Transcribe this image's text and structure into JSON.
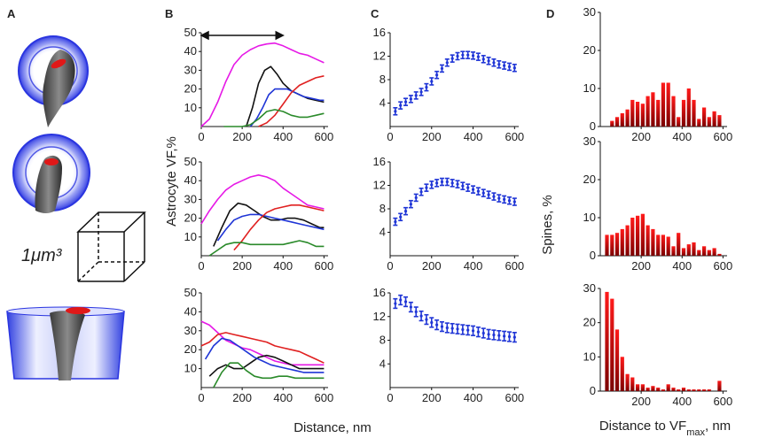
{
  "panel_labels": {
    "a": "A",
    "b": "B",
    "c": "C",
    "d": "D"
  },
  "scale_label": "1μm³",
  "colors": {
    "magenta": "#e619e6",
    "black": "#111111",
    "blue": "#1f35d6",
    "red": "#e02020",
    "green": "#2a8a2a",
    "error_blue": "#1f35d6",
    "hist_dark": "#7a0000",
    "hist_bright": "#ff1a1a"
  },
  "axis_labels": {
    "b_y": "Astrocyte VF,%",
    "b_x": "Distance, nm",
    "d_y": "Spines, %",
    "d_x_main": "Distance to VF",
    "d_x_sub": "max",
    "d_x_tail": ", nm"
  },
  "arrow_range_nm": [
    0,
    400
  ],
  "chart_data": [
    {
      "id": "B1",
      "type": "line",
      "xlim": [
        0,
        620
      ],
      "ylim": [
        0,
        50
      ],
      "xticks": [
        0,
        200,
        400,
        600
      ],
      "yticks": [
        10,
        20,
        30,
        40,
        50
      ],
      "series": [
        {
          "name": "magenta",
          "x": [
            0,
            40,
            80,
            120,
            160,
            200,
            240,
            280,
            320,
            360,
            400,
            440,
            480,
            520,
            560,
            600
          ],
          "y": [
            0,
            4,
            13,
            24,
            33,
            38,
            41,
            43,
            44,
            44.5,
            43,
            41,
            39,
            38,
            36,
            34
          ]
        },
        {
          "name": "black",
          "x": [
            220,
            250,
            280,
            310,
            340,
            370,
            400,
            440,
            480,
            520,
            560,
            600
          ],
          "y": [
            0,
            10,
            23,
            30,
            32,
            28,
            23,
            19,
            17,
            15,
            14,
            13
          ]
        },
        {
          "name": "blue",
          "x": [
            240,
            270,
            300,
            330,
            360,
            390,
            420,
            460,
            500,
            540,
            580,
            600
          ],
          "y": [
            0,
            4,
            10,
            17,
            20,
            20,
            20,
            18,
            16,
            15,
            14,
            14
          ]
        },
        {
          "name": "red",
          "x": [
            280,
            320,
            360,
            400,
            440,
            480,
            520,
            560,
            600
          ],
          "y": [
            0,
            2,
            6,
            12,
            18,
            22,
            24,
            26,
            27
          ]
        },
        {
          "name": "green",
          "x": [
            110,
            160,
            200,
            240,
            280,
            320,
            360,
            400,
            440,
            480,
            520,
            560,
            600
          ],
          "y": [
            0,
            0,
            0,
            1,
            4,
            8,
            9,
            8,
            6,
            5,
            5,
            6,
            7
          ]
        }
      ]
    },
    {
      "id": "B2",
      "type": "line",
      "xlim": [
        0,
        620
      ],
      "ylim": [
        0,
        50
      ],
      "xticks": [
        0,
        200,
        400,
        600
      ],
      "yticks": [
        10,
        20,
        30,
        40,
        50
      ],
      "series": [
        {
          "name": "magenta",
          "x": [
            0,
            40,
            80,
            120,
            160,
            200,
            240,
            280,
            320,
            360,
            400,
            440,
            480,
            520,
            560,
            600
          ],
          "y": [
            17,
            24,
            30,
            35,
            38,
            40,
            42,
            43,
            42,
            40,
            36,
            33,
            30,
            27,
            26,
            25
          ]
        },
        {
          "name": "black",
          "x": [
            60,
            100,
            140,
            180,
            220,
            260,
            300,
            340,
            380,
            420,
            460,
            500,
            540,
            580,
            600
          ],
          "y": [
            5,
            15,
            24,
            28,
            27,
            24,
            21,
            19,
            19,
            20,
            20,
            19,
            17,
            15,
            15
          ]
        },
        {
          "name": "blue",
          "x": [
            80,
            120,
            160,
            200,
            240,
            280,
            320,
            360,
            400,
            440,
            480,
            520,
            560,
            600
          ],
          "y": [
            8,
            14,
            19,
            21,
            22,
            22,
            21,
            20,
            19,
            18,
            17,
            16,
            15,
            14
          ]
        },
        {
          "name": "red",
          "x": [
            160,
            200,
            240,
            280,
            320,
            360,
            400,
            440,
            480,
            520,
            560,
            600
          ],
          "y": [
            3,
            8,
            14,
            19,
            23,
            25,
            26,
            27,
            27,
            26,
            25,
            24
          ]
        },
        {
          "name": "green",
          "x": [
            40,
            80,
            120,
            160,
            200,
            240,
            280,
            320,
            360,
            400,
            440,
            480,
            520,
            560,
            600
          ],
          "y": [
            0,
            3,
            6,
            7,
            7,
            6,
            6,
            6,
            6,
            6,
            7,
            8,
            7,
            5,
            5
          ]
        }
      ]
    },
    {
      "id": "B3",
      "type": "line",
      "xlim": [
        0,
        620
      ],
      "ylim": [
        0,
        50
      ],
      "xticks": [
        0,
        200,
        400,
        600
      ],
      "yticks": [
        10,
        20,
        30,
        40,
        50
      ],
      "series": [
        {
          "name": "magenta",
          "x": [
            0,
            40,
            80,
            120,
            160,
            200,
            240,
            280,
            320,
            360,
            400,
            440,
            480,
            520,
            560,
            600
          ],
          "y": [
            35,
            33,
            29,
            25,
            23,
            21,
            20,
            18,
            16,
            14,
            13,
            12,
            12,
            12,
            12,
            12
          ]
        },
        {
          "name": "black",
          "x": [
            40,
            80,
            120,
            160,
            200,
            240,
            280,
            320,
            360,
            400,
            440,
            480,
            520,
            560,
            600
          ],
          "y": [
            6,
            10,
            12,
            10,
            10,
            13,
            16,
            17,
            16,
            14,
            12,
            10,
            10,
            10,
            10
          ]
        },
        {
          "name": "blue",
          "x": [
            20,
            60,
            100,
            140,
            180,
            220,
            260,
            300,
            340,
            380,
            420,
            460,
            500,
            540,
            580,
            600
          ],
          "y": [
            15,
            22,
            26,
            25,
            22,
            19,
            16,
            14,
            12,
            11,
            10,
            9,
            8,
            8,
            8,
            8
          ]
        },
        {
          "name": "red",
          "x": [
            0,
            40,
            80,
            120,
            160,
            200,
            240,
            280,
            320,
            360,
            400,
            440,
            480,
            520,
            560,
            600
          ],
          "y": [
            22,
            24,
            28,
            29,
            28,
            27,
            26,
            25,
            24,
            22,
            21,
            20,
            19,
            17,
            15,
            13
          ]
        },
        {
          "name": "green",
          "x": [
            60,
            100,
            140,
            180,
            220,
            260,
            300,
            340,
            380,
            420,
            460,
            500,
            540,
            580,
            600
          ],
          "y": [
            0,
            8,
            13,
            13,
            9,
            6,
            5,
            5,
            6,
            6,
            5,
            5,
            5,
            5,
            5
          ]
        }
      ]
    },
    {
      "id": "C1",
      "type": "scatter",
      "xlim": [
        0,
        620
      ],
      "ylim": [
        0,
        16
      ],
      "xticks": [
        0,
        200,
        400,
        600
      ],
      "yticks": [
        4,
        8,
        12,
        16
      ],
      "x": [
        25,
        50,
        75,
        100,
        125,
        150,
        175,
        200,
        225,
        250,
        275,
        300,
        325,
        350,
        375,
        400,
        425,
        450,
        475,
        500,
        525,
        550,
        575,
        600
      ],
      "y": [
        2.6,
        3.6,
        4.2,
        4.7,
        5.3,
        5.9,
        6.7,
        7.7,
        8.8,
        9.9,
        10.9,
        11.6,
        12.0,
        12.2,
        12.2,
        12.1,
        11.9,
        11.5,
        11.2,
        10.9,
        10.6,
        10.4,
        10.2,
        10.0
      ],
      "err": 0.6
    },
    {
      "id": "C2",
      "type": "scatter",
      "xlim": [
        0,
        620
      ],
      "ylim": [
        0,
        16
      ],
      "xticks": [
        0,
        200,
        400,
        600
      ],
      "yticks": [
        4,
        8,
        12,
        16
      ],
      "x": [
        25,
        50,
        75,
        100,
        125,
        150,
        175,
        200,
        225,
        250,
        275,
        300,
        325,
        350,
        375,
        400,
        425,
        450,
        475,
        500,
        525,
        550,
        575,
        600
      ],
      "y": [
        5.8,
        6.6,
        7.6,
        8.8,
        9.9,
        10.9,
        11.6,
        12.1,
        12.4,
        12.6,
        12.6,
        12.4,
        12.2,
        11.9,
        11.6,
        11.3,
        11.0,
        10.7,
        10.4,
        10.1,
        9.8,
        9.6,
        9.4,
        9.2
      ],
      "err": 0.6
    },
    {
      "id": "C3",
      "type": "scatter",
      "xlim": [
        0,
        620
      ],
      "ylim": [
        0,
        16
      ],
      "xticks": [
        0,
        200,
        400,
        600
      ],
      "yticks": [
        4,
        8,
        12,
        16
      ],
      "x": [
        25,
        50,
        75,
        100,
        125,
        150,
        175,
        200,
        225,
        250,
        275,
        300,
        325,
        350,
        375,
        400,
        425,
        450,
        475,
        500,
        525,
        550,
        575,
        600
      ],
      "y": [
        14.2,
        14.8,
        14.5,
        13.6,
        12.8,
        12.1,
        11.5,
        11.0,
        10.6,
        10.3,
        10.1,
        10.0,
        9.9,
        9.8,
        9.7,
        9.6,
        9.4,
        9.2,
        9.0,
        8.9,
        8.8,
        8.7,
        8.6,
        8.5
      ],
      "err": 0.8
    },
    {
      "id": "D1",
      "type": "bar",
      "xlim": [
        0,
        620
      ],
      "ylim": [
        0,
        30
      ],
      "xticks": [
        200,
        400,
        600
      ],
      "xtick_labels": [
        "200",
        "400",
        "600"
      ],
      "yticks": [
        0,
        10,
        20,
        30
      ],
      "bin_start": 20,
      "bin_width": 25,
      "values": [
        0,
        1.5,
        2.5,
        3.5,
        4.5,
        7,
        6.5,
        6,
        8,
        9,
        7,
        11.5,
        11.5,
        8,
        2.5,
        7,
        10,
        7,
        2,
        5,
        2.5,
        4,
        3
      ]
    },
    {
      "id": "D2",
      "type": "bar",
      "xlim": [
        0,
        620
      ],
      "ylim": [
        0,
        30
      ],
      "xticks": [
        200,
        400,
        600
      ],
      "xtick_labels": [
        "200",
        "400",
        "600"
      ],
      "yticks": [
        0,
        10,
        20,
        30
      ],
      "bin_start": 20,
      "bin_width": 25,
      "values": [
        5.5,
        5.5,
        6,
        7,
        8,
        10,
        10.5,
        11,
        8,
        7,
        5.5,
        5.5,
        5,
        2.5,
        6,
        2,
        3,
        3.5,
        1.5,
        2.5,
        1.5,
        2,
        0.5
      ]
    },
    {
      "id": "D3",
      "type": "bar",
      "xlim": [
        0,
        620
      ],
      "ylim": [
        0,
        30
      ],
      "xticks": [
        200,
        400,
        600
      ],
      "xtick_labels": [
        "200",
        "400",
        "600"
      ],
      "yticks": [
        0,
        10,
        20,
        30
      ],
      "bin_start": 20,
      "bin_width": 25,
      "values": [
        29,
        27,
        18,
        10,
        5,
        4,
        2,
        2,
        1,
        1.5,
        1,
        0.5,
        2,
        1,
        0.5,
        1,
        0.5,
        0.5,
        0.5,
        0.5,
        0.5,
        0,
        3
      ]
    }
  ]
}
